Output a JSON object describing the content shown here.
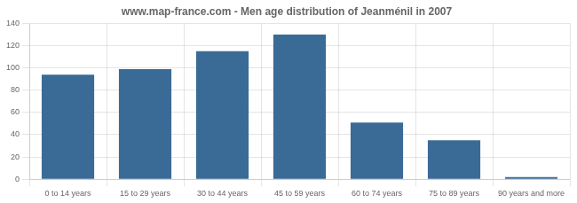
{
  "chart_data": {
    "type": "bar",
    "title": "www.map-france.com - Men age distribution of Jeanménil in 2007",
    "categories": [
      "0 to 14 years",
      "15 to 29 years",
      "30 to 44 years",
      "45 to 59 years",
      "60 to 74 years",
      "75 to 89 years",
      "90 years and more"
    ],
    "values": [
      94,
      99,
      115,
      130,
      51,
      35,
      2
    ],
    "color": "#3a6b96",
    "ylim": [
      0,
      140
    ],
    "yticks": [
      0,
      20,
      40,
      60,
      80,
      100,
      120,
      140
    ],
    "grid": true
  }
}
